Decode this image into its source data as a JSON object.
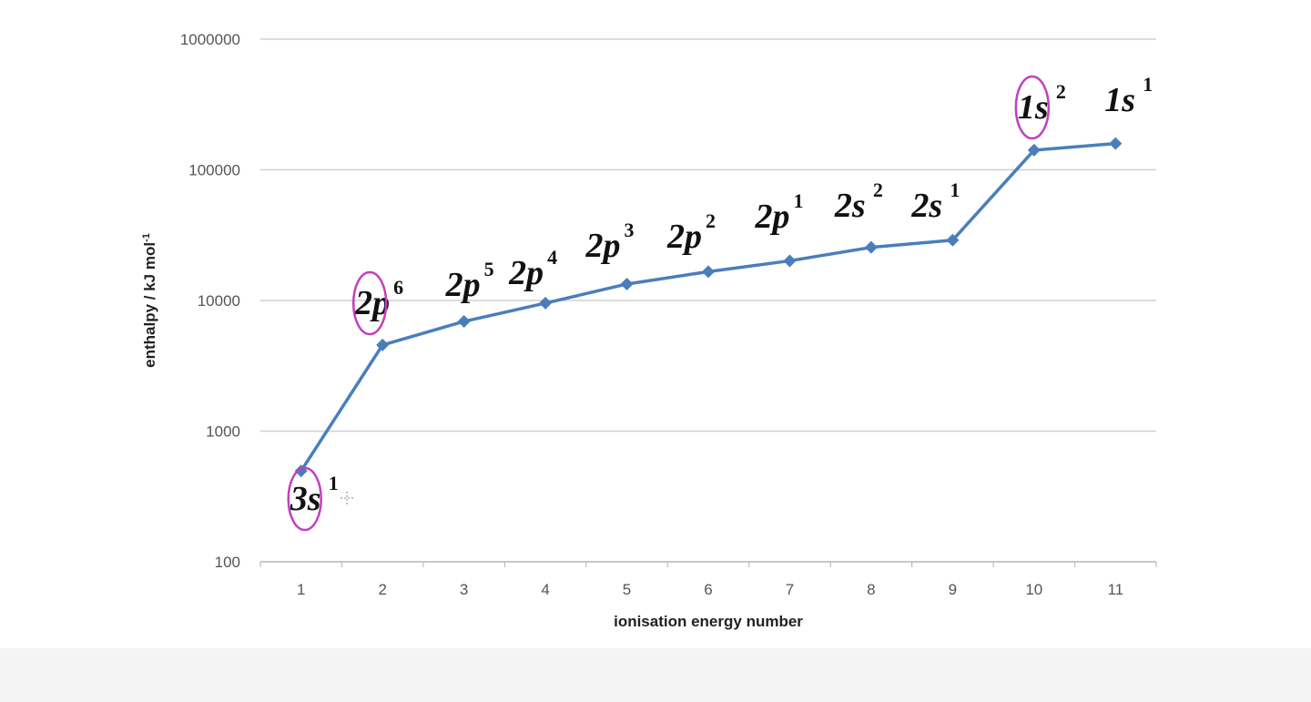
{
  "chart_data": {
    "type": "line",
    "title": "",
    "xlabel": "ionisation energy number",
    "ylabel": "enthalpy / kJ mol",
    "ylabel_superscript": "-1",
    "y_scale": "log",
    "ylim": [
      100,
      1000000
    ],
    "y_ticks": [
      "100",
      "1000",
      "10000",
      "100000",
      "1000000"
    ],
    "categories": [
      "1",
      "2",
      "3",
      "4",
      "5",
      "6",
      "7",
      "8",
      "9",
      "10",
      "11"
    ],
    "series": [
      {
        "values": [
          496,
          4562,
          6910,
          9543,
          13354,
          16613,
          20117,
          25496,
          28932,
          141362,
          159076
        ],
        "color": "#4a7ebb",
        "marker": "diamond"
      }
    ],
    "grid": true,
    "legend": "none",
    "annotations": [
      {
        "category": "1",
        "text": "3s",
        "sup": "1",
        "circled": true
      },
      {
        "category": "2",
        "text": "2p",
        "sup": "6",
        "circled": true
      },
      {
        "category": "3",
        "text": "2p",
        "sup": "5",
        "circled": false
      },
      {
        "category": "4",
        "text": "2p",
        "sup": "4",
        "circled": false
      },
      {
        "category": "5",
        "text": "2p",
        "sup": "3",
        "circled": false
      },
      {
        "category": "6",
        "text": "2p",
        "sup": "2",
        "circled": false
      },
      {
        "category": "7",
        "text": "2p",
        "sup": "1",
        "circled": false
      },
      {
        "category": "8",
        "text": "2s",
        "sup": "2",
        "circled": false
      },
      {
        "category": "9",
        "text": "2s",
        "sup": "1",
        "circled": false
      },
      {
        "category": "10",
        "text": "1s",
        "sup": "2",
        "circled": true
      },
      {
        "category": "11",
        "text": "1s",
        "sup": "1",
        "circled": false
      }
    ],
    "annotation_circle_color": "#c040c0"
  }
}
